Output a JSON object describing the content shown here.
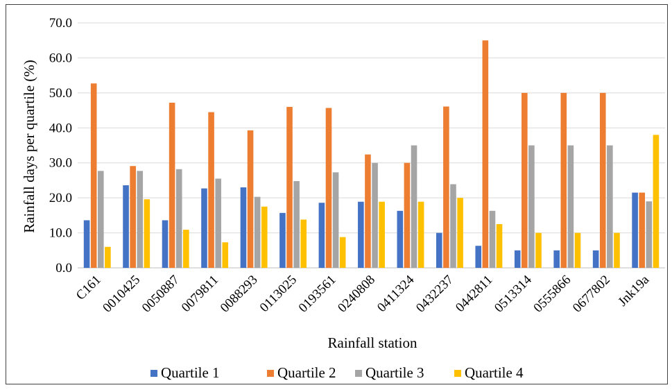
{
  "chart_data": {
    "type": "bar",
    "title": "",
    "xlabel": "Rainfall station",
    "ylabel": "Rainfall days per quartile (%)",
    "ylim": [
      0,
      70
    ],
    "yticks": [
      "0.0",
      "10.0",
      "20.0",
      "30.0",
      "40.0",
      "50.0",
      "60.0",
      "70.0"
    ],
    "ytick_values": [
      0,
      10,
      20,
      30,
      40,
      50,
      60,
      70
    ],
    "grid": true,
    "legend_position": "bottom",
    "categories": [
      "C161",
      "0010425",
      "0050887",
      "0079811",
      "0088293",
      "0113025",
      "0193561",
      "0240808",
      "0411324",
      "0432237",
      "0442811",
      "0513314",
      "0555866",
      "0677802",
      "Jnk19a"
    ],
    "series": [
      {
        "name": "Quartile 1",
        "color": "#4472C4",
        "values": [
          13.6,
          23.6,
          13.6,
          22.7,
          23.0,
          15.7,
          18.6,
          18.9,
          16.3,
          10.0,
          6.3,
          5.0,
          5.0,
          5.0,
          21.5
        ]
      },
      {
        "name": "Quartile 2",
        "color": "#ED7D31",
        "values": [
          52.7,
          29.1,
          47.2,
          44.5,
          39.3,
          46.0,
          45.7,
          32.4,
          30.0,
          46.1,
          65.0,
          50.0,
          50.0,
          50.0,
          21.5
        ]
      },
      {
        "name": "Quartile 3",
        "color": "#A5A5A5",
        "values": [
          27.7,
          27.7,
          28.2,
          25.5,
          20.3,
          24.8,
          27.3,
          30.0,
          35.0,
          23.9,
          16.3,
          35.0,
          35.0,
          35.0,
          19.0
        ]
      },
      {
        "name": "Quartile 4",
        "color": "#FFC000",
        "values": [
          6.0,
          19.6,
          10.9,
          7.3,
          17.5,
          13.8,
          8.8,
          18.9,
          18.9,
          20.0,
          12.5,
          10.0,
          10.0,
          10.0,
          38.0
        ]
      }
    ]
  }
}
